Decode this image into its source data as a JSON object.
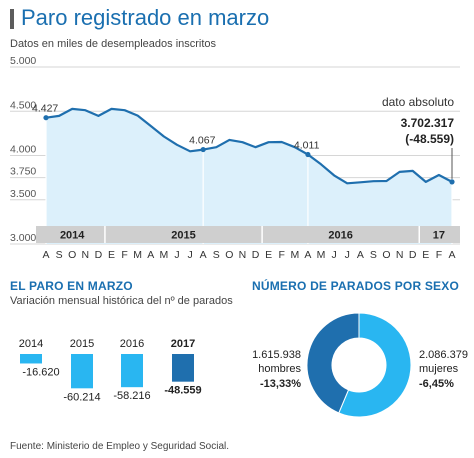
{
  "header": {
    "title": "Paro registrado en marzo",
    "subtitle": "Datos en miles de desempleados inscritos"
  },
  "colors": {
    "title_blue": "#1a6fb0",
    "line": "#1f6fae",
    "area": "#dcf0fb",
    "light_blue": "#29b6f1",
    "dark_blue": "#1f6fae",
    "year_band": "#cfcfcf"
  },
  "chart_data": [
    {
      "type": "area",
      "y_ticks": [
        "5.000",
        "4.500",
        "4.000",
        "3.750",
        "3.500",
        "3.000"
      ],
      "y_tick_values": [
        5000,
        4500,
        4000,
        3750,
        3500,
        3000
      ],
      "ylim": [
        3000,
        5000
      ],
      "grid": true,
      "categories": [
        "A",
        "S",
        "O",
        "N",
        "D",
        "E",
        "F",
        "M",
        "A",
        "M",
        "J",
        "J",
        "A",
        "S",
        "O",
        "N",
        "D",
        "E",
        "F",
        "M",
        "A",
        "M",
        "J",
        "J",
        "A",
        "S",
        "O",
        "N",
        "D",
        "E",
        "F",
        "A"
      ],
      "year_labels": [
        {
          "label": "2014",
          "index": 2
        },
        {
          "label": "2015",
          "index": 10.5
        },
        {
          "label": "2016",
          "index": 22.5
        },
        {
          "label": "17",
          "index": 30
        }
      ],
      "series": [
        {
          "values": [
            4427,
            4448,
            4526,
            4512,
            4448,
            4526,
            4512,
            4451,
            4333,
            4215,
            4121,
            4048,
            4067,
            4094,
            4176,
            4150,
            4094,
            4150,
            4152,
            4094,
            4011,
            3900,
            3775,
            3686,
            3697,
            3710,
            3712,
            3815,
            3826,
            3702,
            3780,
            3702
          ]
        }
      ],
      "annotations": [
        {
          "index": 0,
          "label": "4.427"
        },
        {
          "index": 12,
          "label": "4.067"
        },
        {
          "index": 20,
          "label": "4.011"
        }
      ],
      "final_annotation": {
        "caption": "dato absoluto",
        "value": "3.702.317",
        "change": "(-48.559)"
      }
    },
    {
      "type": "bar",
      "title": "EL PARO EN MARZO",
      "subtitle": "Variación mensual histórica del nº de parados",
      "categories": [
        "2014",
        "2015",
        "2016",
        "2017"
      ],
      "values": [
        -16620,
        -60214,
        -58216,
        -48559
      ],
      "value_labels": [
        "-16.620",
        "-60.214",
        "-58.216",
        "-48.559"
      ],
      "highlight": "2017"
    },
    {
      "type": "pie",
      "title": "NÚMERO DE PARADOS POR SEXO",
      "slices": [
        {
          "name": "hombres",
          "value": 1615938,
          "value_label": "1.615.938",
          "change": "-13,33%"
        },
        {
          "name": "mujeres",
          "value": 2086379,
          "value_label": "2.086.379",
          "change": "-6,45%"
        }
      ]
    }
  ],
  "footer": {
    "source": "Fuente: Ministerio de Empleo y Seguridad Social."
  }
}
